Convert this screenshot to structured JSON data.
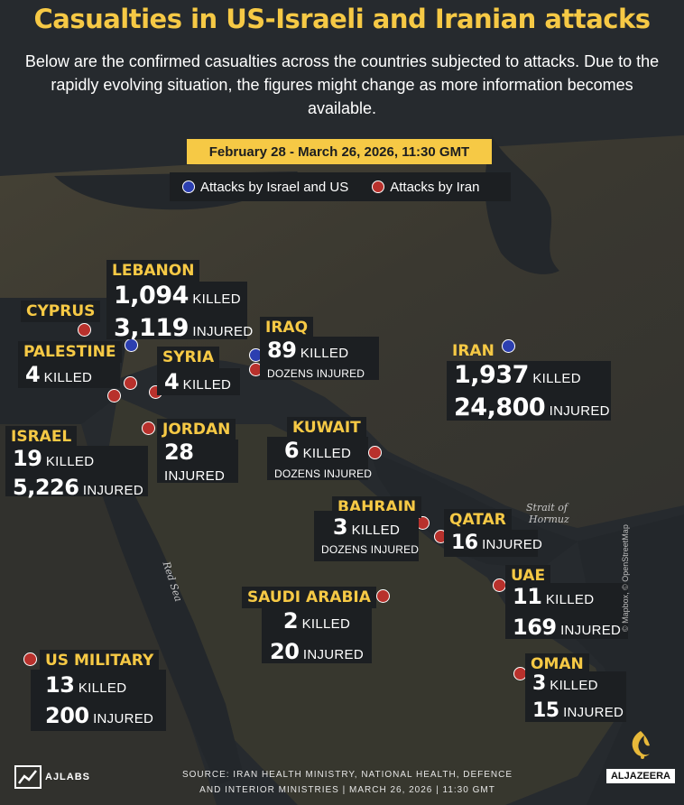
{
  "title": "Casualties in US-Israeli and Iranian attacks",
  "subtitle": "Below are the confirmed casualties across the countries subjected to attacks. Due to the rapidly evolving situation, the figures might change as more information becomes available.",
  "date_range": "February 28 - March 26, 2026, 11:30 GMT",
  "legend": {
    "israel_us": "Attacks by Israel and US",
    "iran": "Attacks by Iran"
  },
  "colors": {
    "background": "#2b2f33",
    "card": "#1c1f22",
    "accent_yellow": "#f6c945",
    "israel_us_marker": "#2c3fb0",
    "iran_marker": "#b8312c"
  },
  "icons": [
    "logo-aj-labs-icon",
    "logo-aljazeera-icon"
  ],
  "regions": {
    "lebanon": {
      "name": "LEBANON",
      "killed": "1,094",
      "killed_label": "KILLED",
      "injured": "3,119",
      "injured_label": "INJURED"
    },
    "cyprus": {
      "name": "CYPRUS"
    },
    "palestine": {
      "name": "PALESTINE",
      "killed": "4",
      "killed_label": "KILLED"
    },
    "syria": {
      "name": "SYRIA",
      "killed": "4",
      "killed_label": "KILLED"
    },
    "iraq": {
      "name": "IRAQ",
      "killed": "89",
      "killed_label": "KILLED",
      "injured_text": "DOZENS INJURED"
    },
    "iran": {
      "name": "IRAN",
      "killed": "1,937",
      "killed_label": "KILLED",
      "injured": "24,800",
      "injured_label": "INJURED"
    },
    "israel": {
      "name": "ISRAEL",
      "killed": "19",
      "killed_label": "KILLED",
      "injured": "5,226",
      "injured_label": "INJURED"
    },
    "jordan": {
      "name": "JORDAN",
      "value": "28",
      "value_label": "INJURED"
    },
    "kuwait": {
      "name": "KUWAIT",
      "killed": "6",
      "killed_label": "KILLED",
      "injured_text": "DOZENS INJURED"
    },
    "bahrain": {
      "name": "BAHRAIN",
      "killed": "3",
      "killed_label": "KILLED",
      "injured_text": "DOZENS INJURED"
    },
    "qatar": {
      "name": "QATAR",
      "injured": "16",
      "injured_label": "INJURED"
    },
    "uae": {
      "name": "UAE",
      "killed": "11",
      "killed_label": "KILLED",
      "injured": "169",
      "injured_label": "INJURED"
    },
    "saudi_arabia": {
      "name": "SAUDI ARABIA",
      "killed": "2",
      "killed_label": "KILLED",
      "injured": "20",
      "injured_label": "INJURED"
    },
    "us_military": {
      "name": "US MILITARY",
      "killed": "13",
      "killed_label": "KILLED",
      "injured": "200",
      "injured_label": "INJURED"
    },
    "oman": {
      "name": "OMAN",
      "killed": "3",
      "killed_label": "KILLED",
      "injured": "15",
      "injured_label": "INJURED"
    }
  },
  "place_labels": {
    "red_sea": "Red Sea",
    "strait_line1": "Strait of",
    "strait_line2": "Hormuz"
  },
  "map_credit": "© Mapbox, © OpenStreetMap",
  "footer": {
    "line1": "SOURCE: IRAN HEALTH MINISTRY, NATIONAL HEALTH, DEFENCE",
    "line2": "AND INTERIOR MINISTRIES | MARCH 26, 2026 | 11:30 GMT"
  },
  "brand": {
    "left": "AJLABS",
    "right": "ALJAZEERA"
  }
}
